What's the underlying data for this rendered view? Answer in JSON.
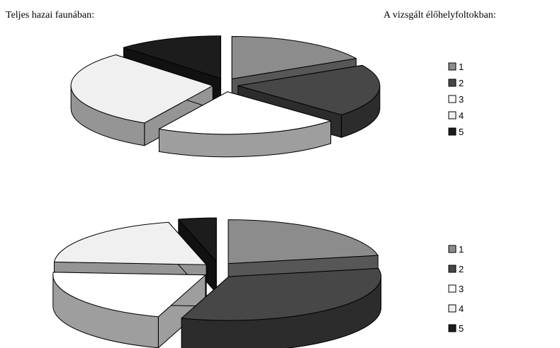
{
  "captions": {
    "left": "Teljes hazai faunában:",
    "right": "A vizsgált élőhelyfoltokban:"
  },
  "colors": {
    "1": "#8c8c8c",
    "2": "#474747",
    "3": "#ffffff",
    "4": "#f0f0f0",
    "5": "#1c1c1c"
  },
  "chart_data": [
    {
      "type": "pie",
      "title": "",
      "categories": [
        "1",
        "2",
        "3",
        "4",
        "5"
      ],
      "values": [
        17,
        20,
        21,
        30,
        12
      ],
      "legend": {
        "position": "right",
        "entries": [
          "1",
          "2",
          "3",
          "4",
          "5"
        ]
      }
    },
    {
      "type": "pie",
      "title": "",
      "categories": [
        "1",
        "2",
        "3",
        "4",
        "5"
      ],
      "values": [
        22,
        33,
        21,
        20,
        4
      ],
      "legend": {
        "position": "right",
        "entries": [
          "1",
          "2",
          "3",
          "4",
          "5"
        ]
      }
    }
  ]
}
